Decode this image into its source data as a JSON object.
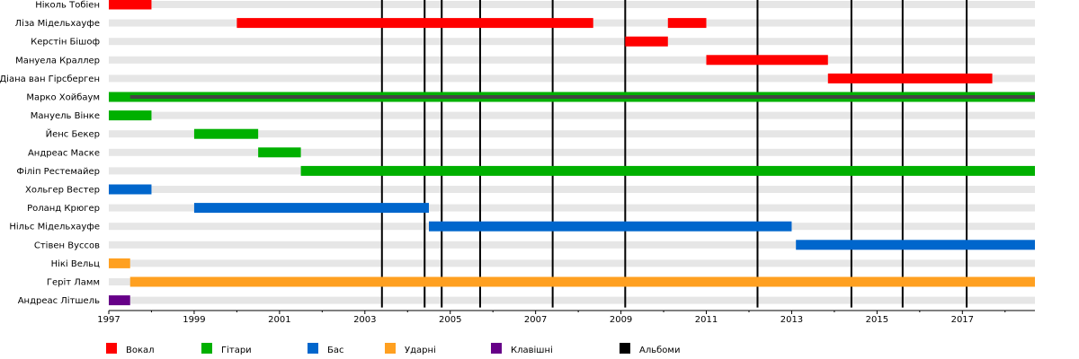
{
  "chart_data": {
    "type": "timeline",
    "x_range": [
      1997,
      2018.7
    ],
    "x_ticks": [
      "1997",
      "1999",
      "2001",
      "2003",
      "2005",
      "2007",
      "2009",
      "2011",
      "2013",
      "2015",
      "2017"
    ],
    "members": [
      {
        "name": "Ніколь Тобіен",
        "periods": [
          {
            "role": "vocals",
            "start": 1997.0,
            "end": 1998.0
          }
        ]
      },
      {
        "name": "Ліза Мідельхауфе",
        "periods": [
          {
            "role": "vocals",
            "start": 2000.0,
            "end": 2008.35
          },
          {
            "role": "vocals",
            "start": 2010.1,
            "end": 2011.0
          }
        ]
      },
      {
        "name": "Керстін Бішоф",
        "periods": [
          {
            "role": "vocals",
            "start": 2009.1,
            "end": 2010.1
          }
        ]
      },
      {
        "name": "Мануела Краллер",
        "periods": [
          {
            "role": "vocals",
            "start": 2011.0,
            "end": 2013.85
          }
        ]
      },
      {
        "name": "Діана ван Гірсберген",
        "periods": [
          {
            "role": "vocals",
            "start": 2013.85,
            "end": 2017.7
          }
        ]
      },
      {
        "name": "Марко Хойбаум",
        "periods": [
          {
            "role": "guitars",
            "start": 1997.0,
            "end": 2018.7
          },
          {
            "role": "keyboards",
            "start": 1997.5,
            "end": 2018.7
          }
        ]
      },
      {
        "name": "Мануель Вінке",
        "periods": [
          {
            "role": "guitars",
            "start": 1997.0,
            "end": 1998.0
          }
        ]
      },
      {
        "name": "Йенс Бекер",
        "periods": [
          {
            "role": "guitars",
            "start": 1999.0,
            "end": 2000.5
          }
        ]
      },
      {
        "name": "Андреас Маске",
        "periods": [
          {
            "role": "guitars",
            "start": 2000.5,
            "end": 2001.5
          }
        ]
      },
      {
        "name": "Філіп Рестемайер",
        "periods": [
          {
            "role": "guitars",
            "start": 2001.5,
            "end": 2018.7
          }
        ]
      },
      {
        "name": "Хольгер Вестер",
        "periods": [
          {
            "role": "bass",
            "start": 1997.0,
            "end": 1998.0
          }
        ]
      },
      {
        "name": "Роланд Крюгер",
        "periods": [
          {
            "role": "bass",
            "start": 1999.0,
            "end": 2004.5
          }
        ]
      },
      {
        "name": "Нільс Мідельхауфе",
        "periods": [
          {
            "role": "bass",
            "start": 2004.5,
            "end": 2013.0
          }
        ]
      },
      {
        "name": "Стівен Вуссов",
        "periods": [
          {
            "role": "bass",
            "start": 2013.1,
            "end": 2018.7
          }
        ]
      },
      {
        "name": "Нікі Вельц",
        "periods": [
          {
            "role": "drums",
            "start": 1997.0,
            "end": 1997.5
          }
        ]
      },
      {
        "name": "Геріт Ламм",
        "periods": [
          {
            "role": "drums",
            "start": 1997.5,
            "end": 2018.7
          }
        ]
      },
      {
        "name": "Андреас Літшель",
        "periods": [
          {
            "role": "keyboards",
            "start": 1997.0,
            "end": 1997.5
          }
        ]
      }
    ],
    "albums": [
      2003.4,
      2004.4,
      2004.8,
      2005.7,
      2007.4,
      2009.1,
      2012.2,
      2014.4,
      2015.6,
      2017.1
    ],
    "legend": [
      {
        "key": "vocals",
        "label": "Вокал",
        "color": "#ff0000"
      },
      {
        "key": "guitars",
        "label": "Гітари",
        "color": "#00b000"
      },
      {
        "key": "bass",
        "label": "Бас",
        "color": "#0066cc"
      },
      {
        "key": "drums",
        "label": "Ударні",
        "color": "#ffa020"
      },
      {
        "key": "keyboards",
        "label": "Клавішні",
        "color": "#660088"
      },
      {
        "key": "albums",
        "label": "Альбоми",
        "color": "#000000"
      }
    ],
    "grid": true,
    "legend_position": "bottom"
  }
}
